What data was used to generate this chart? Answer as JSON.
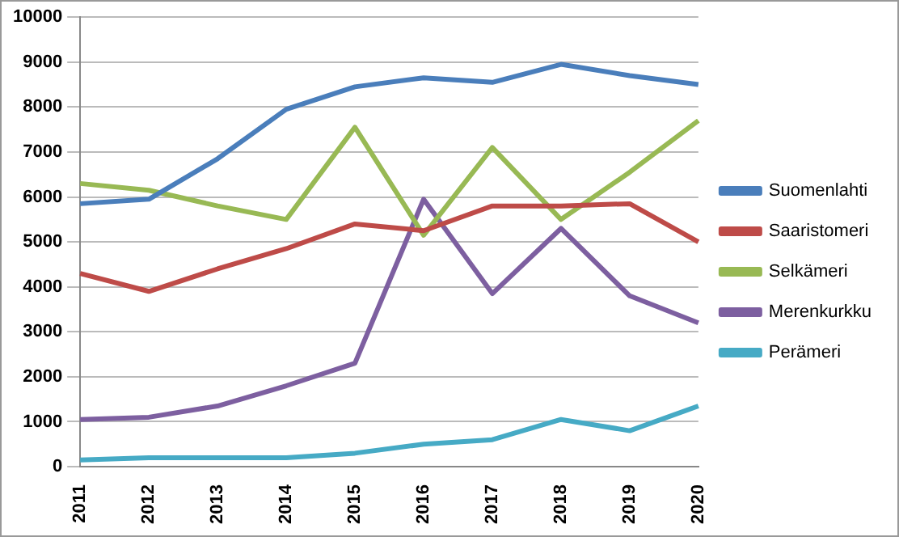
{
  "chart_data": {
    "type": "line",
    "categories": [
      "2011",
      "2012",
      "2013",
      "2014",
      "2015",
      "2016",
      "2017",
      "2018",
      "2019",
      "2020"
    ],
    "series": [
      {
        "name": "Suomenlahti",
        "color": "#4a7ebb",
        "values": [
          5850,
          5950,
          6850,
          7950,
          8450,
          8650,
          8550,
          8950,
          8700,
          8500
        ]
      },
      {
        "name": "Saaristomeri",
        "color": "#be4b48",
        "values": [
          4300,
          3900,
          4400,
          4850,
          5400,
          5250,
          5800,
          5800,
          5850,
          5000
        ]
      },
      {
        "name": "Selkämeri",
        "color": "#98b954",
        "values": [
          6300,
          6150,
          5800,
          5500,
          7550,
          5150,
          7100,
          5500,
          6550,
          7700
        ]
      },
      {
        "name": "Merenkurkku",
        "color": "#7d5fa0",
        "values": [
          1050,
          1100,
          1350,
          1800,
          2300,
          5950,
          3850,
          5300,
          3800,
          3200
        ]
      },
      {
        "name": "Perämeri",
        "color": "#46aac5",
        "values": [
          150,
          200,
          200,
          200,
          300,
          500,
          600,
          1050,
          800,
          1350
        ]
      }
    ],
    "ylim": [
      0,
      10000
    ],
    "yticks": [
      0,
      1000,
      2000,
      3000,
      4000,
      5000,
      6000,
      7000,
      8000,
      9000,
      10000
    ],
    "grid": "y",
    "legend": "right",
    "marker": "none",
    "line_style": "solid"
  }
}
